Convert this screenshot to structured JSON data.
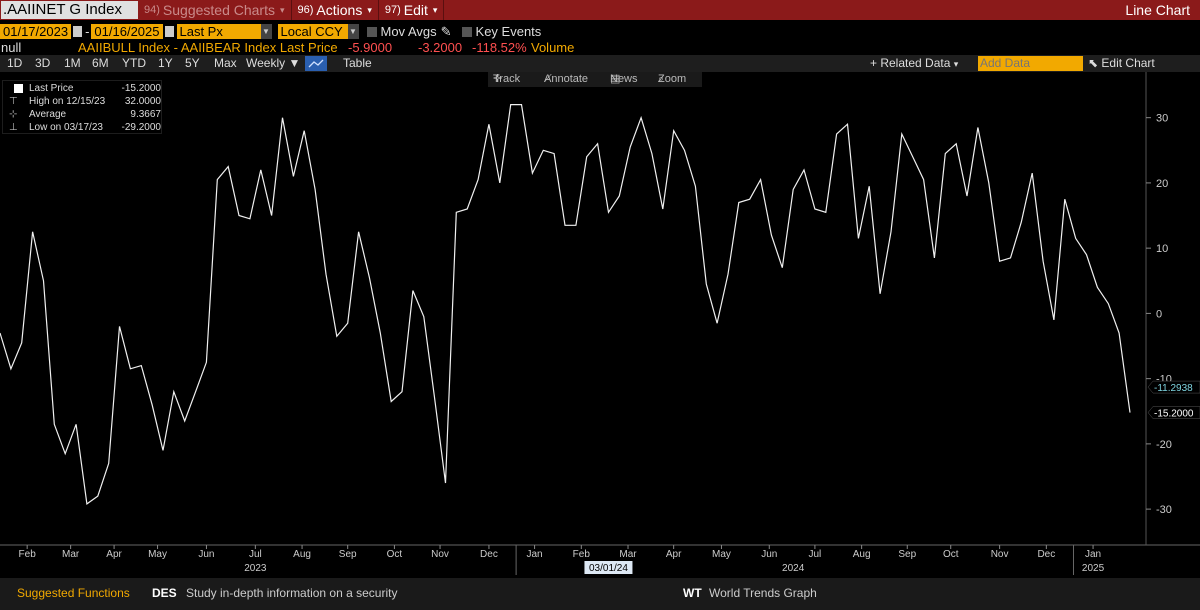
{
  "header": {
    "ticker": ".AAIINET G Index",
    "menu": [
      {
        "num": "94)",
        "label": "Suggested Charts",
        "dim": true
      },
      {
        "num": "96)",
        "label": "Actions",
        "dim": false
      },
      {
        "num": "97)",
        "label": "Edit",
        "dim": false
      }
    ],
    "chart_type": "Line Chart"
  },
  "controls": {
    "start_date": "01/17/2023",
    "sep": "-",
    "end_date": "01/16/2025",
    "price_field": "Last Px",
    "currency": "Local CCY",
    "mov_avgs": "Mov Avgs",
    "key_events": "Key Events"
  },
  "info": {
    "null_label": "null",
    "security": "AAIIBULL Index - AAIIBEAR Index Last Price",
    "last": "-5.9000",
    "change": "-3.2000",
    "pct": "-118.52%",
    "volume": "Volume"
  },
  "toolbar": {
    "periods": [
      "1D",
      "3D",
      "1M",
      "6M",
      "YTD",
      "1Y",
      "5Y",
      "Max"
    ],
    "frequency": "Weekly",
    "table": "Table",
    "related_data": "Related Data",
    "add_data_placeholder": "Add Data",
    "edit_chart": "Edit Chart"
  },
  "chart_tools": {
    "track": "Track",
    "annotate": "Annotate",
    "news": "News",
    "zoom": "Zoom"
  },
  "legend": [
    {
      "label": "Last Price",
      "value": "-15.2000"
    },
    {
      "label": "High on 12/15/23",
      "value": "32.0000"
    },
    {
      "label": "Average",
      "value": "9.3667"
    },
    {
      "label": "Low on 03/17/23",
      "value": "-29.2000"
    }
  ],
  "bottom": {
    "suggested": "Suggested Functions",
    "f1_code": "DES",
    "f1_desc": "Study in-depth information on a security",
    "f2_code": "WT",
    "f2_desc": "World Trends Graph"
  },
  "chart_data": {
    "type": "line",
    "series": [
      {
        "values": [
          -3.0,
          -8.5,
          -4.5,
          12.5,
          5.0,
          -17.0,
          -21.5,
          -17.0,
          -29.2,
          -28.0,
          -23.0,
          -2.0,
          -8.5,
          -8.0,
          -14.0,
          -21.0,
          -12.0,
          -16.5,
          -12.0,
          -7.5,
          20.5,
          22.5,
          15.0,
          14.5,
          22.0,
          15.0,
          30.0,
          21.0,
          28.0,
          19.0,
          6.0,
          -3.5,
          -1.5,
          12.5,
          5.5,
          -3.0,
          -13.5,
          -12.0,
          3.5,
          -0.5,
          -13.0,
          -26.0,
          15.5,
          16.0,
          20.5,
          29.0,
          20.0,
          32.0,
          32.0,
          21.5,
          25.0,
          24.5,
          13.5,
          13.5,
          24.0,
          26.0,
          15.5,
          18.0,
          25.5,
          30.0,
          24.5,
          16.0,
          28.0,
          25.0,
          19.5,
          4.5,
          -1.5,
          6.0,
          17.0,
          17.5,
          20.5,
          12.0,
          7.0,
          19.0,
          22.0,
          16.0,
          15.5,
          27.5,
          29.0,
          11.5,
          19.5,
          3.0,
          12.5,
          27.5,
          24.0,
          20.5,
          8.5,
          24.5,
          26.0,
          18.0,
          28.5,
          20.0,
          8.0,
          8.5,
          14.0,
          21.5,
          8.0,
          -1.0,
          17.5,
          11.5,
          9.0,
          4.0,
          1.5,
          -3.0,
          -15.2
        ]
      }
    ],
    "xlim": [
      0,
      104
    ],
    "ylim": [
      -35.5,
      37
    ],
    "y_ticks": [
      -30,
      -20,
      -10,
      0,
      10,
      20,
      30
    ],
    "months": [
      {
        "label": "Feb",
        "i": 2.5
      },
      {
        "label": "Mar",
        "i": 6.5
      },
      {
        "label": "Apr",
        "i": 10.5
      },
      {
        "label": "May",
        "i": 14.5
      },
      {
        "label": "Jun",
        "i": 19.0
      },
      {
        "label": "Jul",
        "i": 23.5
      },
      {
        "label": "Aug",
        "i": 27.8
      },
      {
        "label": "Sep",
        "i": 32.0
      },
      {
        "label": "Oct",
        "i": 36.3
      },
      {
        "label": "Nov",
        "i": 40.5
      },
      {
        "label": "Dec",
        "i": 45.0
      },
      {
        "label": "Jan",
        "i": 49.2
      },
      {
        "label": "Feb",
        "i": 53.5
      },
      {
        "label": "Mar",
        "i": 57.8
      },
      {
        "label": "Apr",
        "i": 62.0
      },
      {
        "label": "May",
        "i": 66.4
      },
      {
        "label": "Jun",
        "i": 70.8
      },
      {
        "label": "Jul",
        "i": 75.0
      },
      {
        "label": "Aug",
        "i": 79.3
      },
      {
        "label": "Sep",
        "i": 83.5
      },
      {
        "label": "Oct",
        "i": 87.5
      },
      {
        "label": "Nov",
        "i": 92.0
      },
      {
        "label": "Dec",
        "i": 96.3
      },
      {
        "label": "Jan",
        "i": 100.6
      }
    ],
    "years": [
      {
        "label": "2023",
        "i": 23.5
      },
      {
        "label": "2024",
        "i": 73.0
      },
      {
        "label": "2025",
        "i": 100.6
      }
    ],
    "year_dividers": [
      47.5,
      98.8
    ],
    "cursor_date": {
      "label": "03/01/24",
      "i": 56.0
    },
    "markers": [
      {
        "label": "-11.2938",
        "value": -11.2938,
        "color": "#7fd4e0"
      },
      {
        "label": "-15.2000",
        "value": -15.2,
        "color": "#ffffff"
      }
    ]
  }
}
